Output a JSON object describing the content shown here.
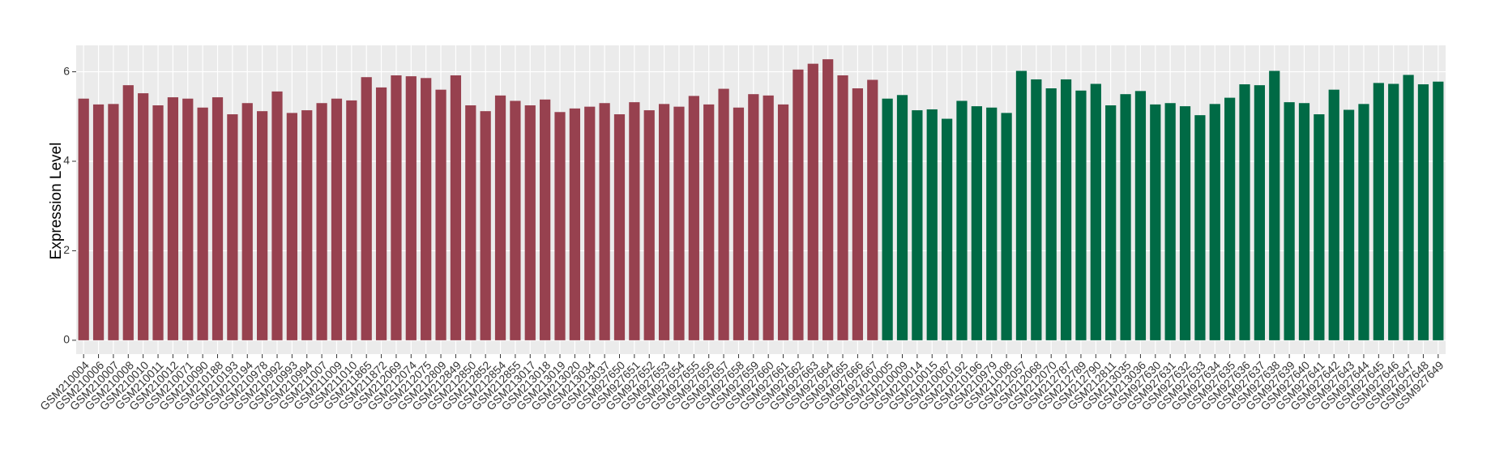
{
  "chart_data": {
    "type": "bar",
    "y_label": "Expression Level",
    "ylim": [
      -0.31,
      6.59
    ],
    "yticks": [
      0,
      2,
      4,
      6
    ],
    "grid": true,
    "series": [
      {
        "color": "#97414f",
        "categories": [
          "GSM210004",
          "GSM210006",
          "GSM210007",
          "GSM210008",
          "GSM210010",
          "GSM210011",
          "GSM210012",
          "GSM210071",
          "GSM210090",
          "GSM210188",
          "GSM210193",
          "GSM210194",
          "GSM210978",
          "GSM210992",
          "GSM210993",
          "GSM210994",
          "GSM211007",
          "GSM211009",
          "GSM211010",
          "GSM211865",
          "GSM211872",
          "GSM212069",
          "GSM212074",
          "GSM212075",
          "GSM212809",
          "GSM212849",
          "GSM212850",
          "GSM212852",
          "GSM212854",
          "GSM212855",
          "GSM213017",
          "GSM213018",
          "GSM213019",
          "GSM213020",
          "GSM213034",
          "GSM213037",
          "GSM927650",
          "GSM927651",
          "GSM927652",
          "GSM927653",
          "GSM927654",
          "GSM927655",
          "GSM927656",
          "GSM927657",
          "GSM927658",
          "GSM927659",
          "GSM927660",
          "GSM927661",
          "GSM927662",
          "GSM927663",
          "GSM927664",
          "GSM927665",
          "GSM927666",
          "GSM927667"
        ],
        "values": [
          5.4,
          5.27,
          5.28,
          5.7,
          5.52,
          5.25,
          5.43,
          5.4,
          5.2,
          5.43,
          5.05,
          5.3,
          5.12,
          5.56,
          5.08,
          5.14,
          5.3,
          5.4,
          5.36,
          5.88,
          5.65,
          5.92,
          5.9,
          5.86,
          5.6,
          5.92,
          5.25,
          5.12,
          5.47,
          5.35,
          5.25,
          5.38,
          5.1,
          5.18,
          5.22,
          5.3,
          5.05,
          5.32,
          5.14,
          5.28,
          5.22,
          5.46,
          5.27,
          5.62,
          5.2,
          5.5,
          5.47,
          5.27,
          6.05,
          6.18,
          6.28,
          5.92,
          5.63,
          5.82
        ]
      },
      {
        "color": "#006a45",
        "categories": [
          "GSM210005",
          "GSM210009",
          "GSM210014",
          "GSM210015",
          "GSM210087",
          "GSM210192",
          "GSM210196",
          "GSM210979",
          "GSM211008",
          "GSM212057",
          "GSM212068",
          "GSM212070",
          "GSM212787",
          "GSM212789",
          "GSM212790",
          "GSM212811",
          "GSM213035",
          "GSM213036",
          "GSM927630",
          "GSM927631",
          "GSM927632",
          "GSM927633",
          "GSM927634",
          "GSM927635",
          "GSM927636",
          "GSM927637",
          "GSM927638",
          "GSM927639",
          "GSM927640",
          "GSM927641",
          "GSM927642",
          "GSM927643",
          "GSM927644",
          "GSM927645",
          "GSM927646",
          "GSM927647",
          "GSM927648",
          "GSM927649"
        ],
        "values": [
          5.4,
          5.48,
          5.14,
          5.16,
          4.95,
          5.35,
          5.23,
          5.2,
          5.08,
          6.02,
          5.83,
          5.63,
          5.83,
          5.58,
          5.73,
          5.25,
          5.5,
          5.57,
          5.27,
          5.3,
          5.23,
          5.03,
          5.28,
          5.42,
          5.72,
          5.7,
          6.02,
          5.32,
          5.3,
          5.05,
          5.6,
          5.15,
          5.28,
          5.75,
          5.73,
          5.93,
          5.72,
          5.78
        ]
      }
    ]
  }
}
